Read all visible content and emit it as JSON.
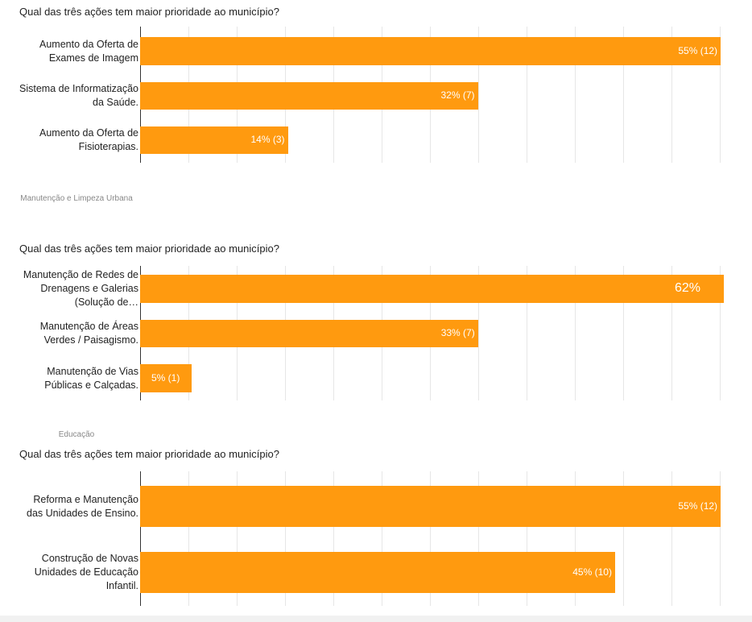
{
  "sections": [
    "Manutenção e Limpeza Urbana",
    "Educação"
  ],
  "chart_data": [
    {
      "type": "bar",
      "orientation": "horizontal",
      "title": "Qual das três ações tem maior prioridade ao município?",
      "categories": [
        "Aumento da Oferta de Exames de Imagem",
        "Sistema de Informatização da Saúde.",
        "Aumento da Oferta de Fisioterapias."
      ],
      "values": [
        55,
        32,
        14
      ],
      "value_labels": [
        "55% (12)",
        "32% (7)",
        "14% (3)"
      ],
      "color": "#ff9a0f",
      "xlim": [
        0,
        55.3
      ]
    },
    {
      "type": "bar",
      "orientation": "horizontal",
      "title": "Qual das três ações tem maior prioridade ao município?",
      "categories": [
        "Manutenção de Redes de Drenagens e Galerias (Solução de…",
        "Manutenção de Áreas Verdes / Paisagismo.",
        "Manutenção de Vias Públicas e Calçadas."
      ],
      "values": [
        62,
        33,
        5
      ],
      "value_labels": [
        "62%",
        "33% (7)",
        "5% (1)"
      ],
      "color": "#ff9a0f",
      "xlim": [
        0,
        57
      ]
    },
    {
      "type": "bar",
      "orientation": "horizontal",
      "title": "Qual das três ações tem maior prioridade ao município?",
      "categories": [
        "Reforma e Manutenção das Unidades de Ensino.",
        "Construção de Novas Unidades de Educação Infantil."
      ],
      "values": [
        55,
        45
      ],
      "value_labels": [
        "55% (12)",
        "45% (10)"
      ],
      "color": "#ff9a0f",
      "xlim": [
        0,
        55.3
      ]
    }
  ]
}
